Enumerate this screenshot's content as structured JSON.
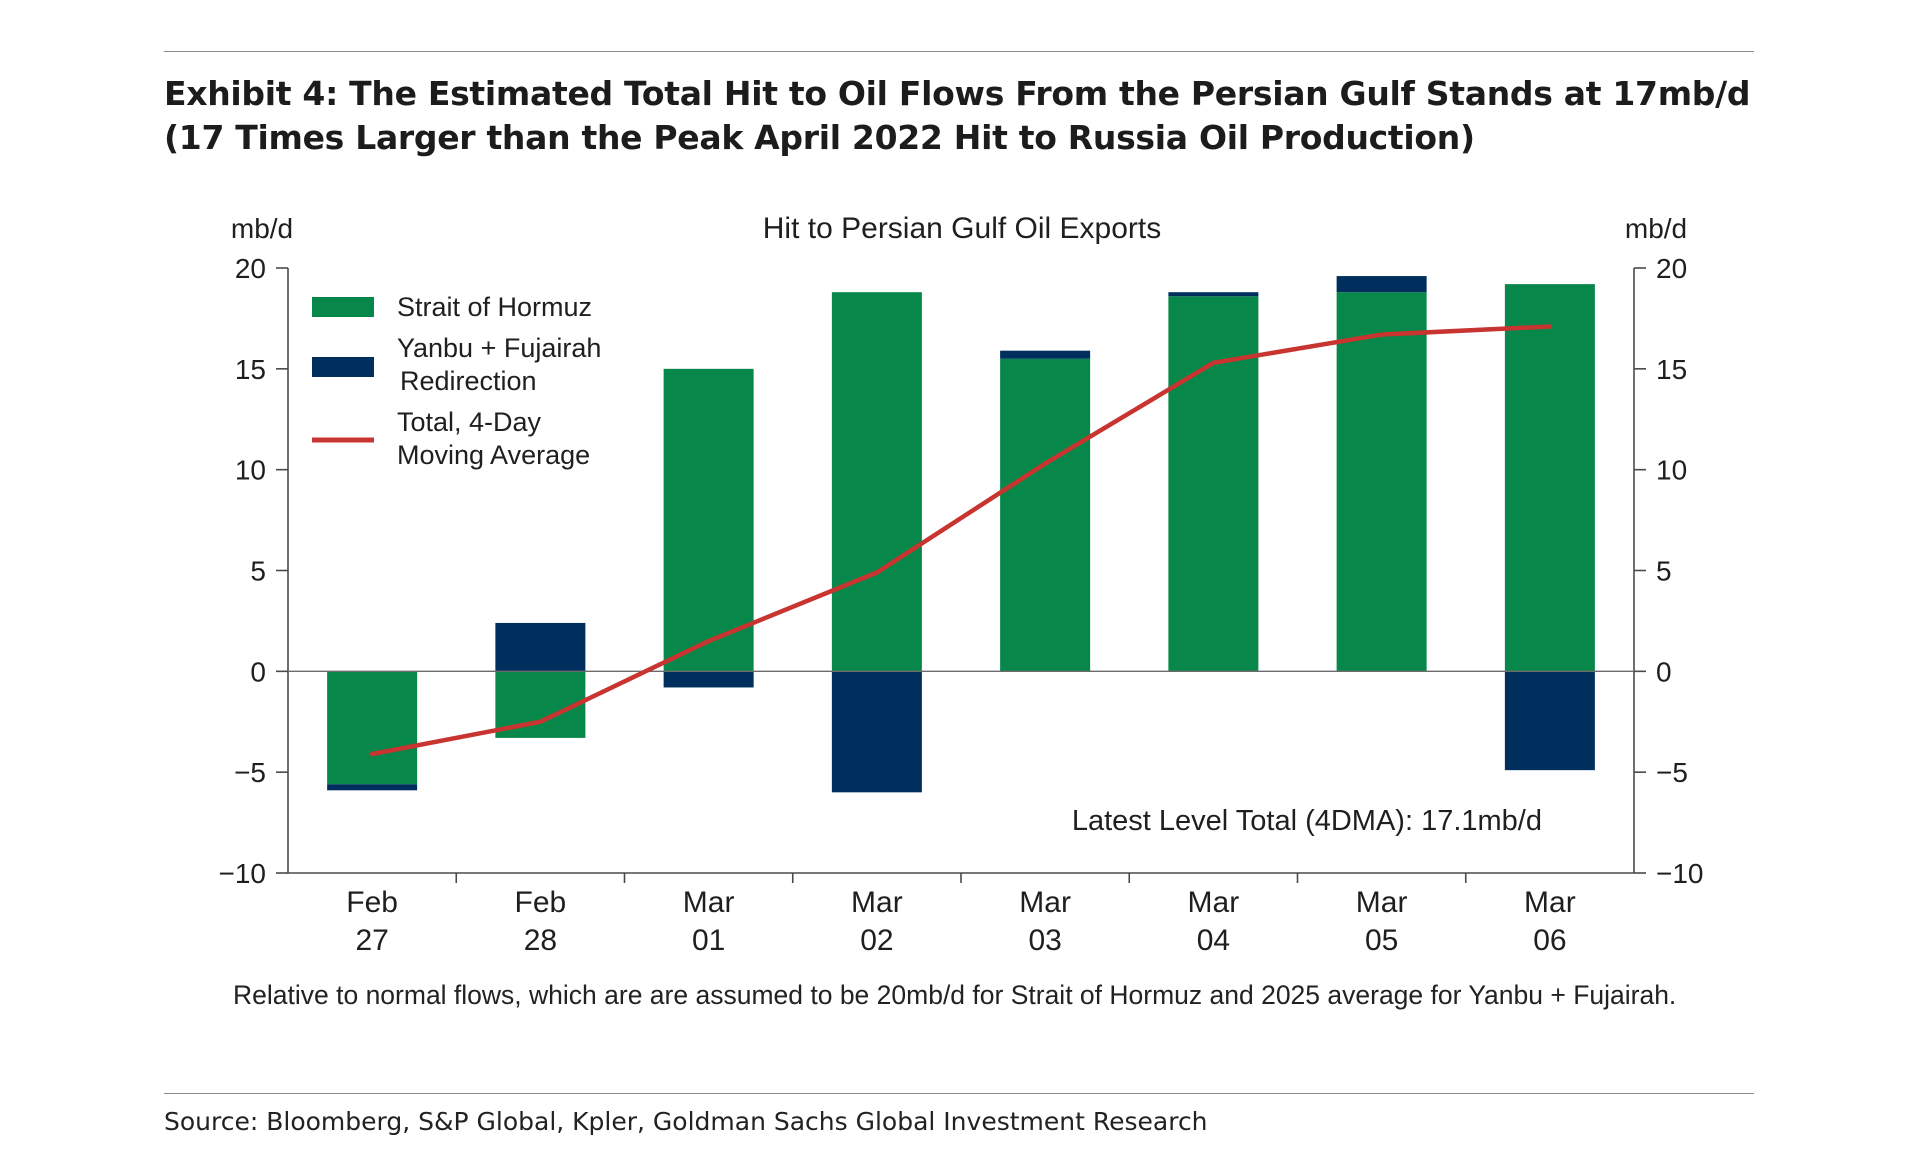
{
  "exhibit_title": "Exhibit 4: The Estimated Total Hit to Oil Flows From the Persian Gulf Stands at 17mb/d (17 Times Larger than the Peak April 2022 Hit to Russia Oil Production)",
  "source": "Source: Bloomberg, S&P Global, Kpler, Goldman Sachs Global Investment Research",
  "note": "Relative to normal flows, which are are assumed to be 20mb/d for Strait of Hormuz and 2025 average for Yanbu + Fujairah.",
  "colors": {
    "hormuz": "#08874a",
    "yanbu": "#002f5e",
    "line": "#c8342f",
    "axis": "#4a4a4a"
  },
  "chart_data": {
    "type": "bar",
    "stacked": true,
    "title": "Hit to Persian Gulf Oil Exports",
    "ylabel_left": "mb/d",
    "ylabel_right": "mb/d",
    "ylim": [
      -10,
      20
    ],
    "yticks": [
      20,
      15,
      10,
      5,
      0,
      -5,
      -10
    ],
    "ytick_labels": [
      "20",
      "15",
      "10",
      "5",
      "0",
      "−5",
      "−10"
    ],
    "categories": [
      {
        "month": "Feb",
        "day": "27"
      },
      {
        "month": "Feb",
        "day": "28"
      },
      {
        "month": "Mar",
        "day": "01"
      },
      {
        "month": "Mar",
        "day": "02"
      },
      {
        "month": "Mar",
        "day": "03"
      },
      {
        "month": "Mar",
        "day": "04"
      },
      {
        "month": "Mar",
        "day": "05"
      },
      {
        "month": "Mar",
        "day": "06"
      }
    ],
    "series": [
      {
        "name": "Strait of Hormuz",
        "kind": "bar",
        "values": [
          -5.6,
          -3.3,
          15.0,
          18.8,
          15.5,
          18.6,
          18.8,
          19.2
        ]
      },
      {
        "name": "Yanbu + Fujairah Redirection",
        "legend_lines": [
          "Yanbu + Fujairah",
          "Redirection"
        ],
        "kind": "bar",
        "values": [
          -0.3,
          2.4,
          -0.8,
          -6.0,
          0.4,
          0.2,
          0.8,
          -4.9
        ]
      },
      {
        "name": "Total, 4-Day Moving Average",
        "legend_lines": [
          "Total, 4-Day",
          "Moving Average"
        ],
        "kind": "line",
        "values": [
          -4.1,
          -2.5,
          1.5,
          4.9,
          10.3,
          15.3,
          16.7,
          17.1
        ]
      }
    ],
    "annotation": "Latest Level Total (4DMA): 17.1mb/d",
    "legend": "top-left"
  }
}
